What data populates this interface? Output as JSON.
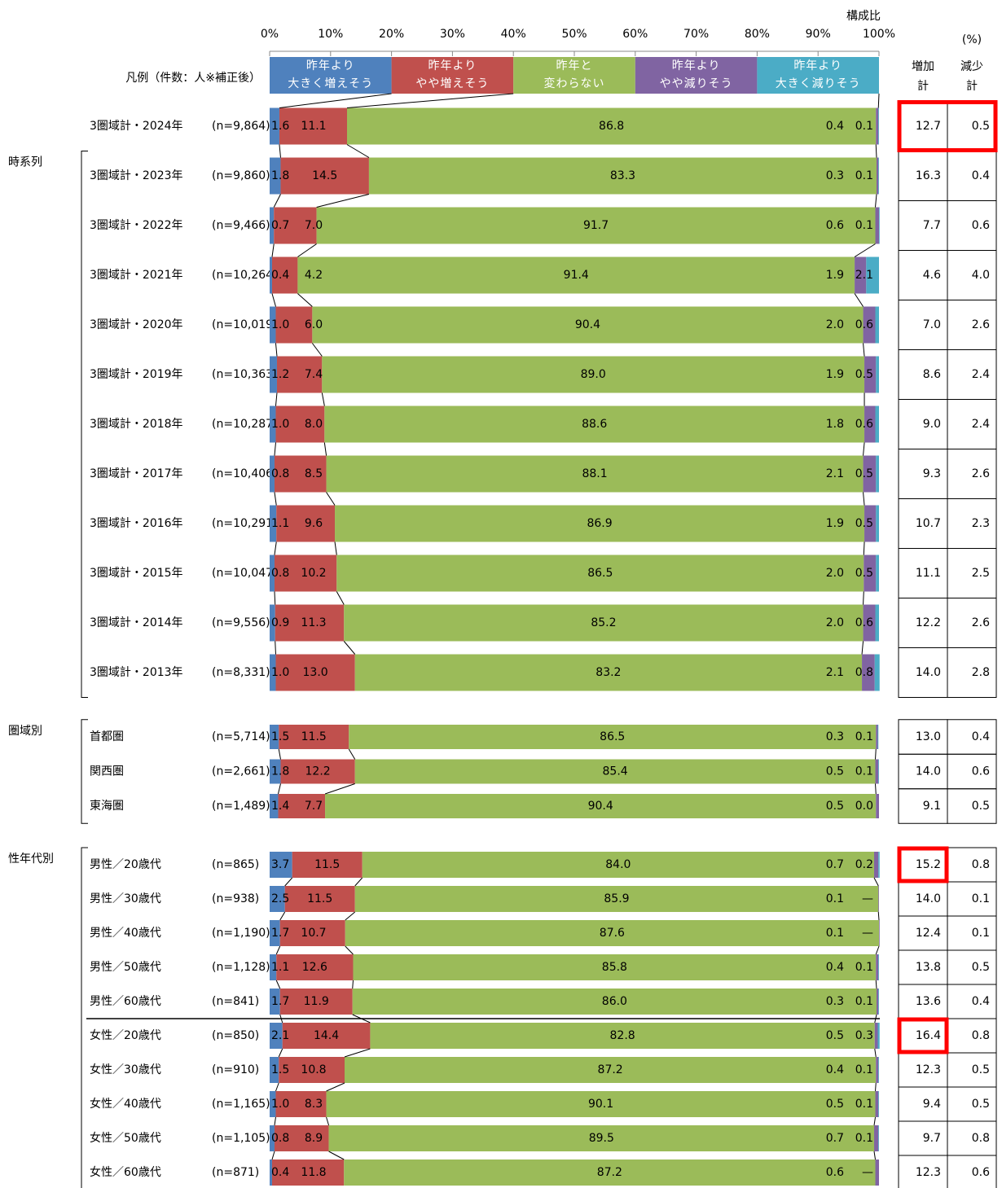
{
  "chart_data": {
    "type": "bar",
    "orientation": "horizontal",
    "stacked": true,
    "axis_title": "構成比",
    "unit_label": "(%)",
    "legend_title": "凡例（件数：人※補正後）",
    "xlim": [
      0,
      100
    ],
    "xticks": [
      {
        "value": 0,
        "label": "0%"
      },
      {
        "value": 10,
        "label": "10%"
      },
      {
        "value": 20,
        "label": "20%"
      },
      {
        "value": 30,
        "label": "30%"
      },
      {
        "value": 40,
        "label": "40%"
      },
      {
        "value": 50,
        "label": "50%"
      },
      {
        "value": 60,
        "label": "60%"
      },
      {
        "value": 70,
        "label": "70%"
      },
      {
        "value": 80,
        "label": "80%"
      },
      {
        "value": 90,
        "label": "90%"
      },
      {
        "value": 100,
        "label": "100%"
      }
    ],
    "categories": [
      "3圏域計・2024年",
      "3圏域計・2023年",
      "3圏域計・2022年",
      "3圏域計・2021年",
      "3圏域計・2020年",
      "3圏域計・2019年",
      "3圏域計・2018年",
      "3圏域計・2017年",
      "3圏域計・2016年",
      "3圏域計・2015年",
      "3圏域計・2014年",
      "3圏域計・2013年",
      "首都圏",
      "関西圏",
      "東海圏",
      "男性／20歳代",
      "男性／30歳代",
      "男性／40歳代",
      "男性／50歳代",
      "男性／60歳代",
      "女性／20歳代",
      "女性／30歳代",
      "女性／40歳代",
      "女性／50歳代",
      "女性／60歳代"
    ],
    "category_groups": [
      null,
      "時系列",
      "時系列",
      "時系列",
      "時系列",
      "時系列",
      "時系列",
      "時系列",
      "時系列",
      "時系列",
      "時系列",
      "時系列",
      "圏域別",
      "圏域別",
      "圏域別",
      "性年代別",
      "性年代別",
      "性年代別",
      "性年代別",
      "性年代別",
      "性年代別",
      "性年代別",
      "性年代別",
      "性年代別",
      "性年代別"
    ],
    "n_labels": [
      "(n=9,864)",
      "(n=9,860)",
      "(n=9,466)",
      "(n=10,264)",
      "(n=10,019)",
      "(n=10,363)",
      "(n=10,287)",
      "(n=10,406)",
      "(n=10,291)",
      "(n=10,047)",
      "(n=9,556)",
      "(n=8,331)",
      "(n=5,714)",
      "(n=2,661)",
      "(n=1,489)",
      "(n=865)",
      "(n=938)",
      "(n=1,190)",
      "(n=1,128)",
      "(n=841)",
      "(n=850)",
      "(n=910)",
      "(n=1,165)",
      "(n=1,105)",
      "(n=871)"
    ],
    "series": [
      {
        "name": "昨年より\n大きく増えそう",
        "color": "#4f81bd",
        "values": [
          1.6,
          1.8,
          0.7,
          0.4,
          1.0,
          1.2,
          1.0,
          0.8,
          1.1,
          0.8,
          0.9,
          1.0,
          1.5,
          1.8,
          1.4,
          3.7,
          2.5,
          1.7,
          1.1,
          1.7,
          2.1,
          1.5,
          1.0,
          0.8,
          0.4
        ],
        "value_labels": [
          "1.6",
          "1.8",
          "0.7",
          "0.4",
          "1.0",
          "1.2",
          "1.0",
          "0.8",
          "1.1",
          "0.8",
          "0.9",
          "1.0",
          "1.5",
          "1.8",
          "1.4",
          "3.7",
          "2.5",
          "1.7",
          "1.1",
          "1.7",
          "2.1",
          "1.5",
          "1.0",
          "0.8",
          "0.4"
        ]
      },
      {
        "name": "昨年より\nやや増えそう",
        "color": "#c0504d",
        "values": [
          11.1,
          14.5,
          7.0,
          4.2,
          6.0,
          7.4,
          8.0,
          8.5,
          9.6,
          10.2,
          11.3,
          13.0,
          11.5,
          12.2,
          7.7,
          11.5,
          11.5,
          10.7,
          12.6,
          11.9,
          14.4,
          10.8,
          8.3,
          8.9,
          11.8
        ],
        "value_labels": [
          "11.1",
          "14.5",
          "7.0",
          "4.2",
          "6.0",
          "7.4",
          "8.0",
          "8.5",
          "9.6",
          "10.2",
          "11.3",
          "13.0",
          "11.5",
          "12.2",
          "7.7",
          "11.5",
          "11.5",
          "10.7",
          "12.6",
          "11.9",
          "14.4",
          "10.8",
          "8.3",
          "8.9",
          "11.8"
        ]
      },
      {
        "name": "昨年と\n変わらない",
        "color": "#9bbb59",
        "values": [
          86.8,
          83.3,
          91.7,
          91.4,
          90.4,
          89.0,
          88.6,
          88.1,
          86.9,
          86.5,
          85.2,
          83.2,
          86.5,
          85.4,
          90.4,
          84.0,
          85.9,
          87.6,
          85.8,
          86.0,
          82.8,
          87.2,
          90.1,
          89.5,
          87.2
        ],
        "value_labels": [
          "86.8",
          "83.3",
          "91.7",
          "91.4",
          "90.4",
          "89.0",
          "88.6",
          "88.1",
          "86.9",
          "86.5",
          "85.2",
          "83.2",
          "86.5",
          "85.4",
          "90.4",
          "84.0",
          "85.9",
          "87.6",
          "85.8",
          "86.0",
          "82.8",
          "87.2",
          "90.1",
          "89.5",
          "87.2"
        ]
      },
      {
        "name": "昨年より\nやや減りそう",
        "color": "#8064a2",
        "values": [
          0.4,
          0.3,
          0.6,
          1.9,
          2.0,
          1.9,
          1.8,
          2.1,
          1.9,
          2.0,
          2.0,
          2.1,
          0.3,
          0.5,
          0.5,
          0.7,
          0.1,
          0.1,
          0.4,
          0.3,
          0.5,
          0.4,
          0.5,
          0.7,
          0.6
        ],
        "value_labels": [
          "0.4",
          "0.3",
          "0.6",
          "1.9",
          "2.0",
          "1.9",
          "1.8",
          "2.1",
          "1.9",
          "2.0",
          "2.0",
          "2.1",
          "0.3",
          "0.5",
          "0.5",
          "0.7",
          "0.1",
          "0.1",
          "0.4",
          "0.3",
          "0.5",
          "0.4",
          "0.5",
          "0.7",
          "0.6"
        ]
      },
      {
        "name": "昨年より\n大きく減りそう",
        "color": "#4bacc6",
        "values": [
          0.1,
          0.1,
          0.1,
          2.1,
          0.6,
          0.5,
          0.6,
          0.5,
          0.5,
          0.5,
          0.6,
          0.8,
          0.1,
          0.1,
          0.0,
          0.2,
          null,
          null,
          0.1,
          0.1,
          0.3,
          0.1,
          0.1,
          0.1,
          null
        ],
        "value_labels": [
          "0.1",
          "0.1",
          "0.1",
          "2.1",
          "0.6",
          "0.5",
          "0.6",
          "0.5",
          "0.5",
          "0.5",
          "0.6",
          "0.8",
          "0.1",
          "0.1",
          "0.0",
          "0.2",
          "—",
          "—",
          "0.1",
          "0.1",
          "0.3",
          "0.1",
          "0.1",
          "0.1",
          "—"
        ]
      }
    ],
    "table_headers": [
      "増加\n計",
      "減少\n計"
    ],
    "increase_total": [
      "12.7",
      "16.3",
      "7.7",
      "4.6",
      "7.0",
      "8.6",
      "9.0",
      "9.3",
      "10.7",
      "11.1",
      "12.2",
      "14.0",
      "13.0",
      "14.0",
      "9.1",
      "15.2",
      "14.0",
      "12.4",
      "13.8",
      "13.6",
      "16.4",
      "12.3",
      "9.4",
      "9.7",
      "12.3"
    ],
    "decrease_total": [
      "0.5",
      "0.4",
      "0.6",
      "4.0",
      "2.6",
      "2.4",
      "2.4",
      "2.6",
      "2.3",
      "2.5",
      "2.6",
      "2.8",
      "0.4",
      "0.6",
      "0.5",
      "0.8",
      "0.1",
      "0.1",
      "0.5",
      "0.4",
      "0.8",
      "0.5",
      "0.5",
      "0.8",
      "0.6"
    ],
    "increase_highlight": [
      true,
      false,
      false,
      false,
      false,
      false,
      false,
      false,
      false,
      false,
      false,
      false,
      false,
      false,
      false,
      true,
      false,
      false,
      false,
      false,
      true,
      false,
      false,
      false,
      false
    ],
    "decrease_highlight": [
      true,
      false,
      false,
      false,
      false,
      false,
      false,
      false,
      false,
      false,
      false,
      false,
      false,
      false,
      false,
      false,
      false,
      false,
      false,
      false,
      false,
      false,
      false,
      false,
      false
    ]
  }
}
